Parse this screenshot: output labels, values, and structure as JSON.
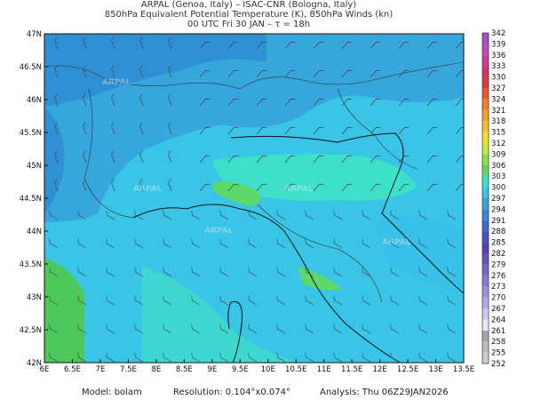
{
  "header": {
    "lines": [
      "ARPAL (Genoa, Italy)  –  ISAC-CNR (Bologna, Italy)",
      "850hPa Equivalent Potential Temperature (K), 850hPa Winds (kn)",
      "00 UTC Fri 30 JAN  –  τ = 18h"
    ]
  },
  "map": {
    "lon_ticks": [
      "6E",
      "6.5E",
      "7E",
      "7.5E",
      "8E",
      "8.5E",
      "9E",
      "9.5E",
      "10E",
      "10.5E",
      "11E",
      "11.5E",
      "12E",
      "12.5E",
      "13E",
      "13.5E"
    ],
    "lat_ticks": [
      "42N",
      "42.5N",
      "43N",
      "43.5N",
      "44N",
      "44.5N",
      "45N",
      "45.5N",
      "46N",
      "46.5N",
      "47N"
    ],
    "watermark": "ARPAL"
  },
  "colorbar": {
    "levels": [
      252,
      255,
      258,
      261,
      264,
      267,
      270,
      273,
      276,
      279,
      282,
      285,
      288,
      291,
      294,
      297,
      300,
      303,
      306,
      309,
      312,
      315,
      318,
      321,
      324,
      327,
      330,
      333,
      336,
      339,
      342
    ]
  },
  "footer": {
    "model": "Model: bolam",
    "resolution": "Resolution: 0.104°x0.074°",
    "analysis": "Analysis: Thu 06Z29JAN2026"
  }
}
